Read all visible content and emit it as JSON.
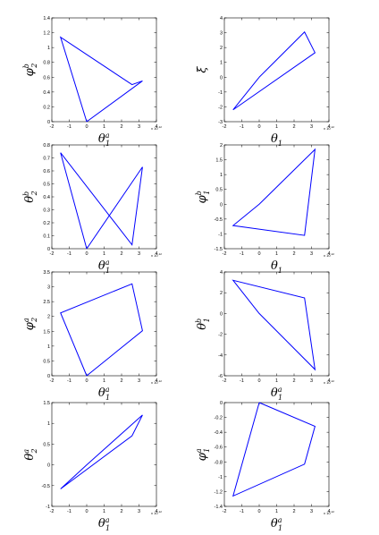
{
  "chart_data": [
    {
      "type": "line",
      "xlabel": {
        "base": "θ",
        "sub": "1",
        "sup": "a"
      },
      "ylabel": {
        "base": "φ",
        "sub": "2",
        "sup": "b"
      },
      "xlim": [
        -2,
        4
      ],
      "ylim": [
        0,
        1.4
      ],
      "xticks": [
        "-2",
        "-1",
        "0",
        "1",
        "2",
        "3",
        "4"
      ],
      "yticks": [
        "0",
        "0.2",
        "0.4",
        "0.6",
        "0.8",
        "1",
        "1.2",
        "1.4"
      ],
      "x_exponent": "x 10",
      "x_exponent_power": "-12",
      "series": [
        {
          "x": [
            0,
            -1.5,
            2.6,
            3.2,
            0
          ],
          "y": [
            0,
            1.14,
            0.5,
            0.55,
            0
          ]
        }
      ]
    },
    {
      "type": "line",
      "xlabel": {
        "base": "θ",
        "sub": "1",
        "sup": ""
      },
      "ylabel": {
        "base": "ξ",
        "sub": "",
        "sup": ""
      },
      "xlim": [
        -2,
        4
      ],
      "ylim": [
        -3,
        4
      ],
      "xticks": [
        "-2",
        "-1",
        "0",
        "1",
        "2",
        "3",
        "4"
      ],
      "yticks": [
        "-3",
        "-2",
        "-1",
        "0",
        "1",
        "2",
        "3",
        "4"
      ],
      "x_exponent": "x 10",
      "x_exponent_power": "-12",
      "series": [
        {
          "x": [
            0,
            -1.5,
            3.2,
            2.6,
            0
          ],
          "y": [
            0,
            -2.2,
            1.65,
            3.05,
            0
          ]
        }
      ]
    },
    {
      "type": "line",
      "xlabel": {
        "base": "θ",
        "sub": "1",
        "sup": "a"
      },
      "ylabel": {
        "base": "θ",
        "sub": "2",
        "sup": "b"
      },
      "xlim": [
        -2,
        4
      ],
      "ylim": [
        0,
        0.8
      ],
      "xticks": [
        "-2",
        "-1",
        "0",
        "1",
        "2",
        "3",
        "4"
      ],
      "yticks": [
        "0",
        "0.1",
        "0.2",
        "0.3",
        "0.4",
        "0.5",
        "0.6",
        "0.7",
        "0.8"
      ],
      "x_exponent": "x 10",
      "x_exponent_power": "-12",
      "series": [
        {
          "x": [
            0,
            -1.5,
            2.6,
            3.2,
            0
          ],
          "y": [
            0,
            0.74,
            0.03,
            0.63,
            0
          ]
        }
      ]
    },
    {
      "type": "line",
      "xlabel": {
        "base": "θ",
        "sub": "1",
        "sup": ""
      },
      "ylabel": {
        "base": "φ",
        "sub": "1",
        "sup": "b"
      },
      "xlim": [
        -2,
        4
      ],
      "ylim": [
        -1.5,
        2
      ],
      "xticks": [
        "-2",
        "-1",
        "0",
        "1",
        "2",
        "3",
        "4"
      ],
      "yticks": [
        "-1.5",
        "-1",
        "-0.5",
        "0",
        "0.5",
        "1",
        "1.5",
        "2"
      ],
      "x_exponent": "x 10",
      "x_exponent_power": "-12",
      "series": [
        {
          "x": [
            0,
            -1.5,
            2.6,
            3.2,
            0
          ],
          "y": [
            0,
            -0.72,
            -1.05,
            1.85,
            0
          ]
        }
      ]
    },
    {
      "type": "line",
      "xlabel": {
        "base": "θ",
        "sub": "1",
        "sup": "a"
      },
      "ylabel": {
        "base": "φ",
        "sub": "2",
        "sup": "a"
      },
      "xlim": [
        -2,
        4
      ],
      "ylim": [
        0,
        3.5
      ],
      "xticks": [
        "-2",
        "-1",
        "0",
        "1",
        "2",
        "3",
        "4"
      ],
      "yticks": [
        "0",
        "0.5",
        "1",
        "1.5",
        "2",
        "2.5",
        "3",
        "3.5"
      ],
      "x_exponent": "x 10",
      "x_exponent_power": "-12",
      "series": [
        {
          "x": [
            0,
            -1.5,
            2.6,
            3.2,
            0
          ],
          "y": [
            0,
            2.12,
            3.1,
            1.52,
            0
          ]
        }
      ]
    },
    {
      "type": "line",
      "xlabel": {
        "base": "θ",
        "sub": "1",
        "sup": "a"
      },
      "ylabel": {
        "base": "θ",
        "sub": "1",
        "sup": "b"
      },
      "xlim": [
        -2,
        4
      ],
      "ylim": [
        -6,
        4
      ],
      "xticks": [
        "-2",
        "-1",
        "0",
        "1",
        "2",
        "3",
        "4"
      ],
      "yticks": [
        "-6",
        "-4",
        "-2",
        "0",
        "2",
        "4"
      ],
      "x_exponent": "x 10",
      "x_exponent_power": "-12",
      "series": [
        {
          "x": [
            0,
            -1.5,
            2.6,
            3.2,
            0
          ],
          "y": [
            0,
            3.2,
            1.5,
            -5.4,
            0
          ]
        }
      ]
    },
    {
      "type": "line",
      "xlabel": {
        "base": "θ",
        "sub": "1",
        "sup": "a"
      },
      "ylabel": {
        "base": "θ",
        "sub": "2",
        "sup": "a"
      },
      "xlim": [
        -2,
        4
      ],
      "ylim": [
        -1,
        1.5
      ],
      "xticks": [
        "-2",
        "-1",
        "0",
        "1",
        "2",
        "3",
        "4"
      ],
      "yticks": [
        "-1",
        "-0.5",
        "0",
        "0.5",
        "1",
        "1.5"
      ],
      "x_exponent": "x 10",
      "x_exponent_power": "-12",
      "series": [
        {
          "x": [
            0,
            -1.5,
            2.6,
            3.2,
            0
          ],
          "y": [
            0,
            -0.58,
            0.7,
            1.2,
            0
          ]
        }
      ]
    },
    {
      "type": "line",
      "xlabel": {
        "base": "θ",
        "sub": "1",
        "sup": "a"
      },
      "ylabel": {
        "base": "φ",
        "sub": "1",
        "sup": "a"
      },
      "xlim": [
        -2,
        4
      ],
      "ylim": [
        -1.4,
        0
      ],
      "xticks": [
        "-2",
        "-1",
        "0",
        "1",
        "2",
        "3",
        "4"
      ],
      "yticks": [
        "-1.4",
        "-1.2",
        "-1",
        "-0.8",
        "-0.6",
        "-0.4",
        "-0.2",
        "0"
      ],
      "x_exponent": "x 10",
      "x_exponent_power": "-12",
      "series": [
        {
          "x": [
            0,
            -1.5,
            2.6,
            3.2,
            0
          ],
          "y": [
            0,
            -1.26,
            -0.83,
            -0.32,
            0
          ]
        }
      ]
    }
  ]
}
